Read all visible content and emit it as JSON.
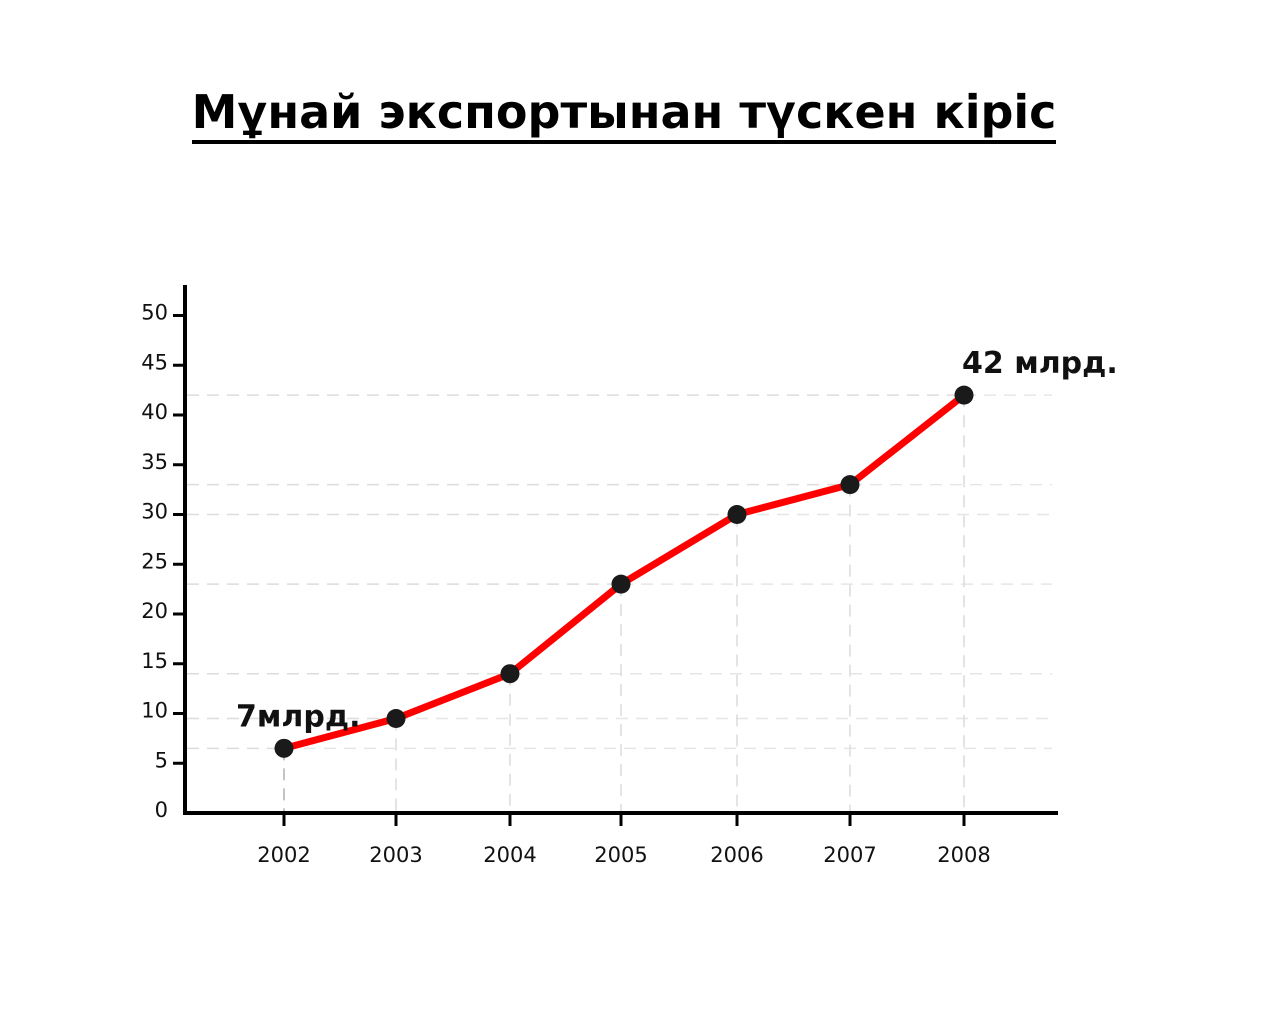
{
  "chart_data": {
    "type": "line",
    "title": "Мұнай экспортынан түскен кіріс",
    "xlabel": "",
    "ylabel": "",
    "categories": [
      "2002",
      "2003",
      "2004",
      "2005",
      "2006",
      "2007",
      "2008"
    ],
    "series": [
      {
        "values": [
          6.5,
          9.5,
          14,
          23,
          30,
          33,
          42
        ],
        "color": "#ff0000"
      }
    ],
    "marker_color": "#1a1a1a",
    "yticks": [
      "0",
      "5",
      "10",
      "15",
      "20",
      "25",
      "30",
      "35",
      "40",
      "45",
      "50"
    ],
    "ylim": [
      0,
      53
    ],
    "grid": "dashed guide lines from each point to axes",
    "annotations": [
      {
        "text": "7млрд.",
        "category": "2002"
      },
      {
        "text": "42 млрд.",
        "category": "2008"
      }
    ]
  }
}
